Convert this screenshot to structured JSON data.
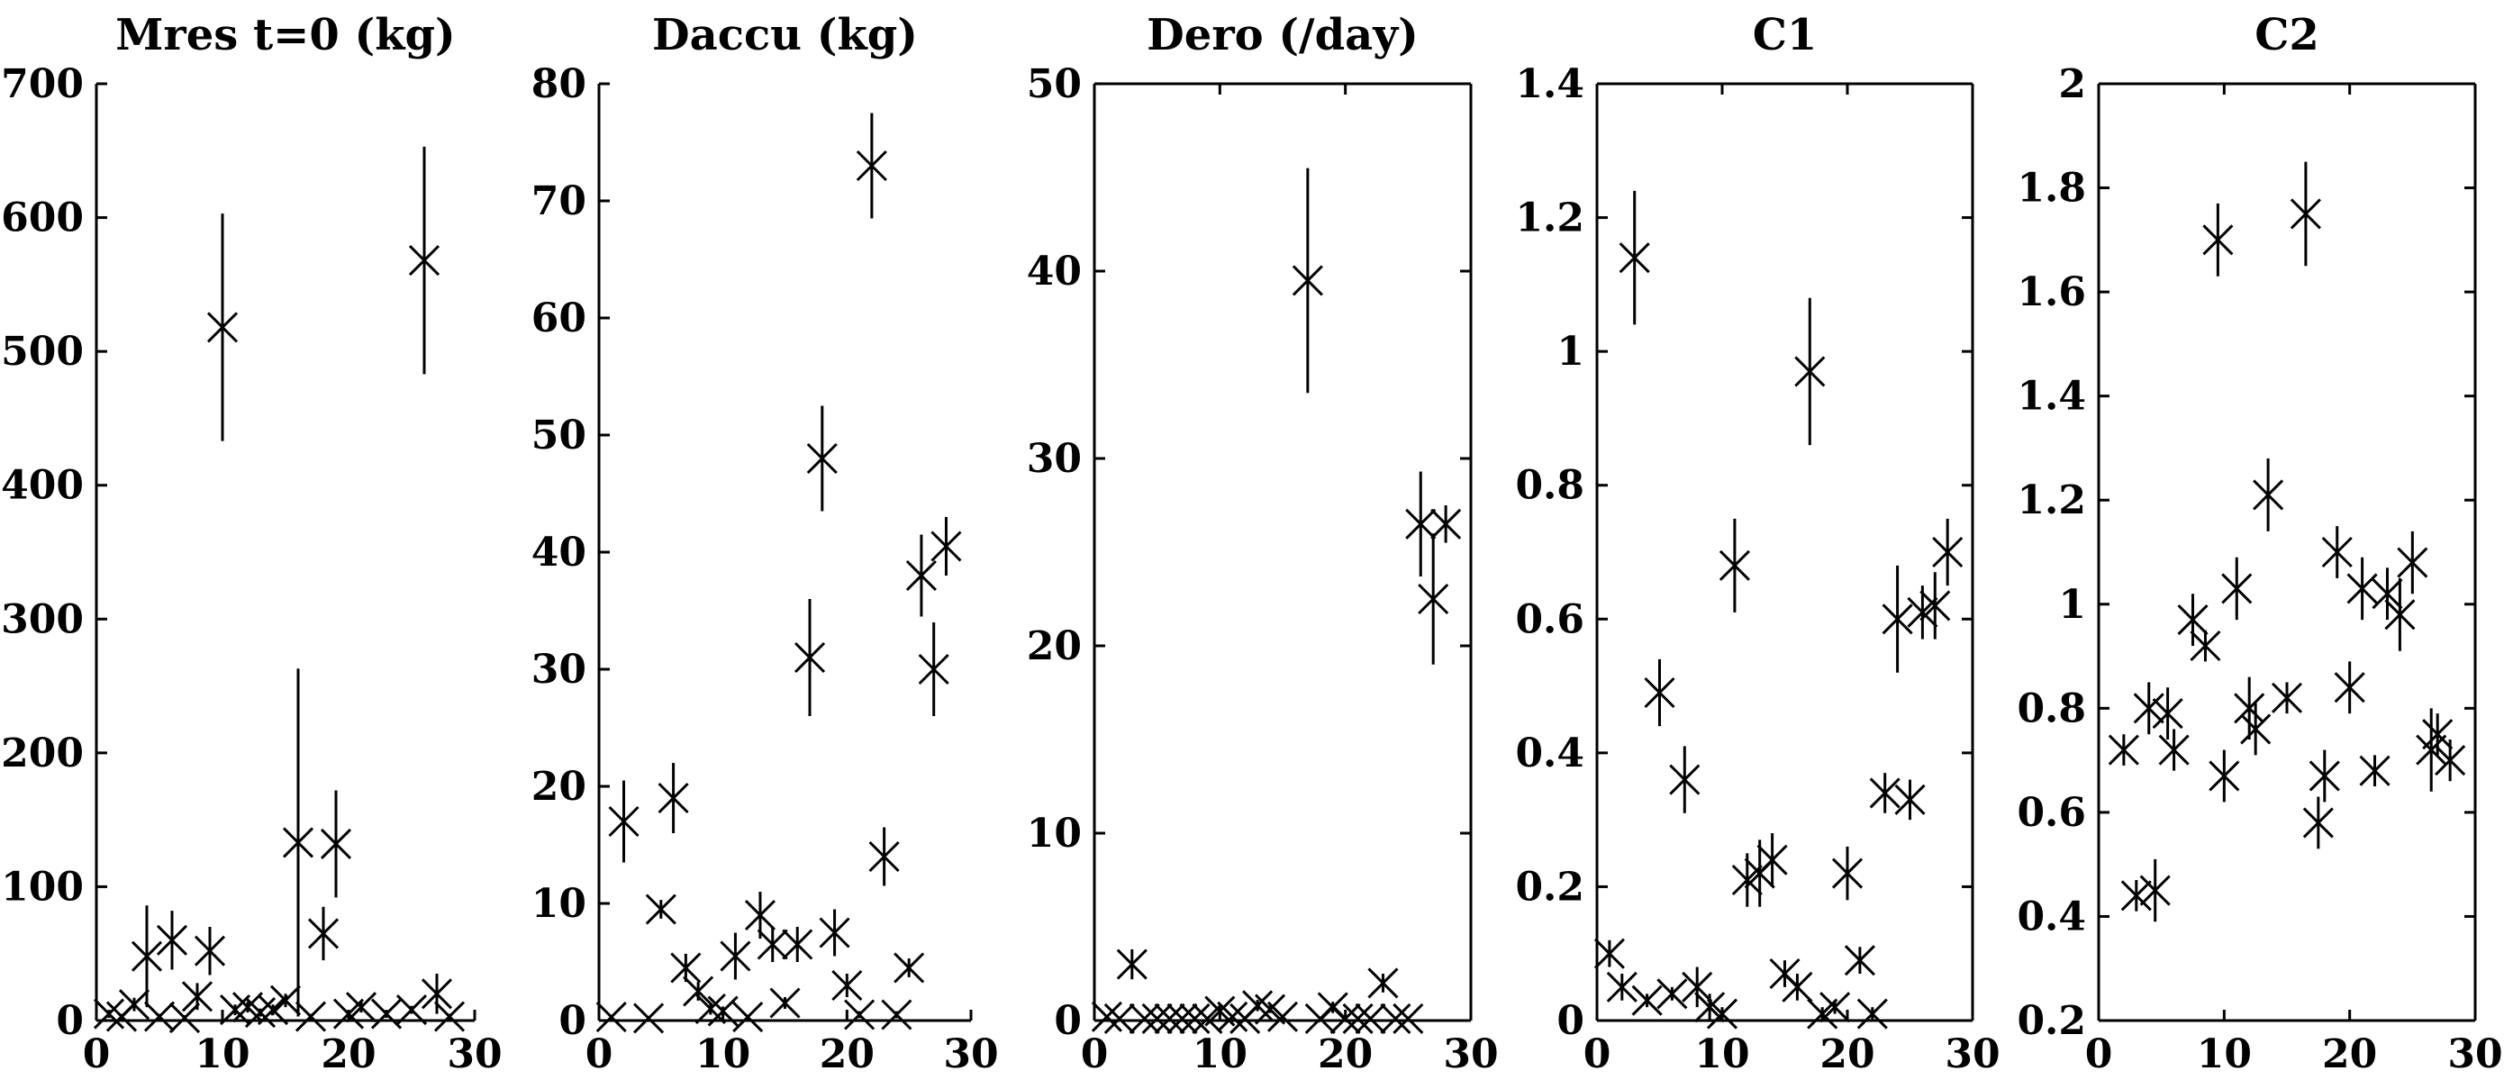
{
  "chart_data": [
    {
      "type": "scatter",
      "title": "Mres t=0 (kg)",
      "xlim": [
        0,
        30
      ],
      "ylim": [
        0,
        700
      ],
      "xticks": [
        0,
        10,
        20,
        30
      ],
      "yticks": [
        0,
        100,
        200,
        300,
        400,
        500,
        600,
        700
      ],
      "xtick_labels": [
        "0",
        "10",
        "20",
        "30"
      ],
      "ytick_labels": [
        "0",
        "100",
        "200",
        "300",
        "400",
        "500",
        "600",
        "700"
      ],
      "box": false,
      "points": [
        {
          "x": 1,
          "y": 5,
          "err": 3
        },
        {
          "x": 2,
          "y": 3,
          "err": 2
        },
        {
          "x": 3,
          "y": 12,
          "err": 5
        },
        {
          "x": 4,
          "y": 48,
          "err": 38
        },
        {
          "x": 5,
          "y": 3,
          "err": 2
        },
        {
          "x": 6,
          "y": 60,
          "err": 22
        },
        {
          "x": 7,
          "y": 2,
          "err": 2
        },
        {
          "x": 8,
          "y": 18,
          "err": 10
        },
        {
          "x": 9,
          "y": 52,
          "err": 18
        },
        {
          "x": 10,
          "y": 518,
          "err": 85
        },
        {
          "x": 11,
          "y": 8,
          "err": 4
        },
        {
          "x": 12,
          "y": 10,
          "err": 4
        },
        {
          "x": 13,
          "y": 6,
          "err": 3
        },
        {
          "x": 14,
          "y": 8,
          "err": 4
        },
        {
          "x": 15,
          "y": 15,
          "err": 5
        },
        {
          "x": 16,
          "y": 133,
          "err": 130
        },
        {
          "x": 17,
          "y": 3,
          "err": 2
        },
        {
          "x": 18,
          "y": 65,
          "err": 20
        },
        {
          "x": 19,
          "y": 132,
          "err": 40
        },
        {
          "x": 20,
          "y": 5,
          "err": 3
        },
        {
          "x": 21,
          "y": 10,
          "err": 4
        },
        {
          "x": 23,
          "y": 5,
          "err": 3
        },
        {
          "x": 25,
          "y": 8,
          "err": 3
        },
        {
          "x": 26,
          "y": 568,
          "err": 85
        },
        {
          "x": 27,
          "y": 20,
          "err": 15
        },
        {
          "x": 28,
          "y": 3,
          "err": 2
        }
      ]
    },
    {
      "type": "scatter",
      "title": "Daccu (kg)",
      "xlim": [
        0,
        30
      ],
      "ylim": [
        0,
        80
      ],
      "xticks": [
        0,
        10,
        20,
        30
      ],
      "yticks": [
        0,
        10,
        20,
        30,
        40,
        50,
        60,
        70,
        80
      ],
      "xtick_labels": [
        "0",
        "10",
        "20",
        "30"
      ],
      "ytick_labels": [
        "0",
        "10",
        "20",
        "30",
        "40",
        "50",
        "60",
        "70",
        "80"
      ],
      "box": false,
      "points": [
        {
          "x": 1,
          "y": 0.3,
          "err": 0.2
        },
        {
          "x": 2,
          "y": 17,
          "err": 3.5
        },
        {
          "x": 4,
          "y": 0.2,
          "err": 0.2
        },
        {
          "x": 5,
          "y": 9.5,
          "err": 0.8
        },
        {
          "x": 6,
          "y": 19,
          "err": 3
        },
        {
          "x": 7,
          "y": 4.5,
          "err": 1.2
        },
        {
          "x": 8,
          "y": 2.5,
          "err": 0.8
        },
        {
          "x": 9,
          "y": 1,
          "err": 0.5
        },
        {
          "x": 10,
          "y": 0.8,
          "err": 0.4
        },
        {
          "x": 11,
          "y": 5.5,
          "err": 2
        },
        {
          "x": 12,
          "y": 0.3,
          "err": 0.2
        },
        {
          "x": 13,
          "y": 9,
          "err": 2
        },
        {
          "x": 14,
          "y": 6.5,
          "err": 1.5
        },
        {
          "x": 15,
          "y": 1.5,
          "err": 0.5
        },
        {
          "x": 16,
          "y": 6.5,
          "err": 1.5
        },
        {
          "x": 17,
          "y": 31,
          "err": 5
        },
        {
          "x": 18,
          "y": 48,
          "err": 4.5
        },
        {
          "x": 19,
          "y": 7.5,
          "err": 2
        },
        {
          "x": 20,
          "y": 3,
          "err": 1
        },
        {
          "x": 21,
          "y": 0.5,
          "err": 0.3
        },
        {
          "x": 22,
          "y": 73,
          "err": 4.5
        },
        {
          "x": 23,
          "y": 14,
          "err": 2.5
        },
        {
          "x": 24,
          "y": 0.5,
          "err": 0.3
        },
        {
          "x": 25,
          "y": 4.5,
          "err": 0.8
        },
        {
          "x": 26,
          "y": 38,
          "err": 3.5
        },
        {
          "x": 27,
          "y": 30,
          "err": 4
        },
        {
          "x": 28,
          "y": 40.5,
          "err": 2.5
        }
      ]
    },
    {
      "type": "scatter",
      "title": "Dero (/day)",
      "xlim": [
        0,
        30
      ],
      "ylim": [
        0,
        50
      ],
      "xticks": [
        0,
        10,
        20,
        30
      ],
      "yticks": [
        0,
        10,
        20,
        30,
        40,
        50
      ],
      "xtick_labels": [
        "0",
        "10",
        "20",
        "30"
      ],
      "ytick_labels": [
        "0",
        "10",
        "20",
        "30",
        "40",
        "50"
      ],
      "box": true,
      "points": [
        {
          "x": 1,
          "y": 0.2,
          "err": 0.1
        },
        {
          "x": 2,
          "y": 0.1,
          "err": 0.1
        },
        {
          "x": 3,
          "y": 3,
          "err": 0.8
        },
        {
          "x": 4,
          "y": 0.1,
          "err": 0.1
        },
        {
          "x": 5,
          "y": 0.1,
          "err": 0.1
        },
        {
          "x": 6,
          "y": 0.1,
          "err": 0.1
        },
        {
          "x": 7,
          "y": 0.1,
          "err": 0.1
        },
        {
          "x": 8,
          "y": 0.1,
          "err": 0.1
        },
        {
          "x": 9,
          "y": 0.1,
          "err": 0.1
        },
        {
          "x": 10,
          "y": 0.5,
          "err": 0.3
        },
        {
          "x": 11,
          "y": 0.2,
          "err": 0.1
        },
        {
          "x": 12,
          "y": 0.1,
          "err": 0.1
        },
        {
          "x": 13,
          "y": 0.8,
          "err": 0.3
        },
        {
          "x": 14,
          "y": 0.6,
          "err": 0.2
        },
        {
          "x": 15,
          "y": 0.2,
          "err": 0.1
        },
        {
          "x": 17,
          "y": 39.5,
          "err": 6
        },
        {
          "x": 18,
          "y": 0.1,
          "err": 0.1
        },
        {
          "x": 19,
          "y": 0.7,
          "err": 0.3
        },
        {
          "x": 20,
          "y": 0.1,
          "err": 0.1
        },
        {
          "x": 21,
          "y": 0.1,
          "err": 0.1
        },
        {
          "x": 22,
          "y": 0.1,
          "err": 0.1
        },
        {
          "x": 23,
          "y": 2,
          "err": 0.5
        },
        {
          "x": 24,
          "y": 0.1,
          "err": 0.1
        },
        {
          "x": 25,
          "y": 0.1,
          "err": 0.1
        },
        {
          "x": 26,
          "y": 26.5,
          "err": 2.8
        },
        {
          "x": 27,
          "y": 22.5,
          "err": 3.5
        },
        {
          "x": 28,
          "y": 26.5,
          "err": 1
        }
      ]
    },
    {
      "type": "scatter",
      "title": "C1",
      "xlim": [
        0,
        30
      ],
      "ylim": [
        0,
        1.4
      ],
      "xticks": [
        0,
        10,
        20,
        30
      ],
      "yticks": [
        0,
        0.2,
        0.4,
        0.6,
        0.8,
        1.0,
        1.2,
        1.4
      ],
      "xtick_labels": [
        "0",
        "10",
        "20",
        "30"
      ],
      "ytick_labels": [
        "0",
        "0.2",
        "0.4",
        "0.6",
        "0.8",
        "1",
        "1.2",
        "1.4"
      ],
      "box": true,
      "points": [
        {
          "x": 1,
          "y": 0.1,
          "err": 0.02
        },
        {
          "x": 2,
          "y": 0.05,
          "err": 0.02
        },
        {
          "x": 3,
          "y": 1.14,
          "err": 0.1
        },
        {
          "x": 4,
          "y": 0.03,
          "err": 0.01
        },
        {
          "x": 5,
          "y": 0.49,
          "err": 0.05
        },
        {
          "x": 6,
          "y": 0.04,
          "err": 0.01
        },
        {
          "x": 7,
          "y": 0.36,
          "err": 0.05
        },
        {
          "x": 8,
          "y": 0.05,
          "err": 0.03
        },
        {
          "x": 9,
          "y": 0.02,
          "err": 0.02
        },
        {
          "x": 10,
          "y": 0.01,
          "err": 0.01
        },
        {
          "x": 11,
          "y": 0.68,
          "err": 0.07
        },
        {
          "x": 12,
          "y": 0.21,
          "err": 0.04
        },
        {
          "x": 13,
          "y": 0.22,
          "err": 0.05
        },
        {
          "x": 14,
          "y": 0.24,
          "err": 0.04
        },
        {
          "x": 15,
          "y": 0.07,
          "err": 0.02
        },
        {
          "x": 16,
          "y": 0.05,
          "err": 0.02
        },
        {
          "x": 17,
          "y": 0.97,
          "err": 0.11
        },
        {
          "x": 18,
          "y": 0.01,
          "err": 0.01
        },
        {
          "x": 19,
          "y": 0.02,
          "err": 0.01
        },
        {
          "x": 20,
          "y": 0.22,
          "err": 0.04
        },
        {
          "x": 21,
          "y": 0.09,
          "err": 0.02
        },
        {
          "x": 22,
          "y": 0.01,
          "err": 0.01
        },
        {
          "x": 23,
          "y": 0.34,
          "err": 0.03
        },
        {
          "x": 24,
          "y": 0.6,
          "err": 0.08
        },
        {
          "x": 25,
          "y": 0.33,
          "err": 0.03
        },
        {
          "x": 26,
          "y": 0.61,
          "err": 0.04
        },
        {
          "x": 27,
          "y": 0.62,
          "err": 0.05
        },
        {
          "x": 28,
          "y": 0.7,
          "err": 0.05
        }
      ]
    },
    {
      "type": "scatter",
      "title": "C2",
      "xlim": [
        0,
        30
      ],
      "ylim": [
        0.2,
        2
      ],
      "xticks": [
        0,
        10,
        20,
        30
      ],
      "yticks": [
        0.2,
        0.4,
        0.6,
        0.8,
        1.0,
        1.2,
        1.4,
        1.6,
        1.8,
        2.0
      ],
      "xtick_labels": [
        "0",
        "10",
        "20",
        "30"
      ],
      "ytick_labels": [
        "0.2",
        "0.4",
        "0.6",
        "0.8",
        "1",
        "1.2",
        "1.4",
        "1.6",
        "1.8",
        "2"
      ],
      "box": true,
      "points": [
        {
          "x": 2,
          "y": 0.72,
          "err": 0.03
        },
        {
          "x": 3,
          "y": 0.44,
          "err": 0.03
        },
        {
          "x": 4,
          "y": 0.8,
          "err": 0.05
        },
        {
          "x": 4.5,
          "y": 0.45,
          "err": 0.06
        },
        {
          "x": 5.5,
          "y": 0.79,
          "err": 0.05
        },
        {
          "x": 6,
          "y": 0.72,
          "err": 0.04
        },
        {
          "x": 7.5,
          "y": 0.97,
          "err": 0.05
        },
        {
          "x": 8.5,
          "y": 0.92,
          "err": 0.03
        },
        {
          "x": 9.5,
          "y": 1.7,
          "err": 0.07
        },
        {
          "x": 10,
          "y": 0.67,
          "err": 0.05
        },
        {
          "x": 11,
          "y": 1.03,
          "err": 0.06
        },
        {
          "x": 12,
          "y": 0.8,
          "err": 0.06
        },
        {
          "x": 12.5,
          "y": 0.76,
          "err": 0.05
        },
        {
          "x": 13.5,
          "y": 1.21,
          "err": 0.07
        },
        {
          "x": 15,
          "y": 0.82,
          "err": 0.03
        },
        {
          "x": 16.5,
          "y": 1.75,
          "err": 0.1
        },
        {
          "x": 17.5,
          "y": 0.58,
          "err": 0.05
        },
        {
          "x": 18,
          "y": 0.67,
          "err": 0.05
        },
        {
          "x": 19,
          "y": 1.1,
          "err": 0.05
        },
        {
          "x": 20,
          "y": 0.84,
          "err": 0.05
        },
        {
          "x": 21,
          "y": 1.03,
          "err": 0.06
        },
        {
          "x": 22,
          "y": 0.68,
          "err": 0.03
        },
        {
          "x": 23,
          "y": 1.02,
          "err": 0.05
        },
        {
          "x": 24,
          "y": 0.98,
          "err": 0.07
        },
        {
          "x": 25,
          "y": 1.08,
          "err": 0.06
        },
        {
          "x": 26.5,
          "y": 0.72,
          "err": 0.08
        },
        {
          "x": 27,
          "y": 0.75,
          "err": 0.04
        },
        {
          "x": 28,
          "y": 0.7,
          "err": 0.04
        }
      ]
    }
  ]
}
